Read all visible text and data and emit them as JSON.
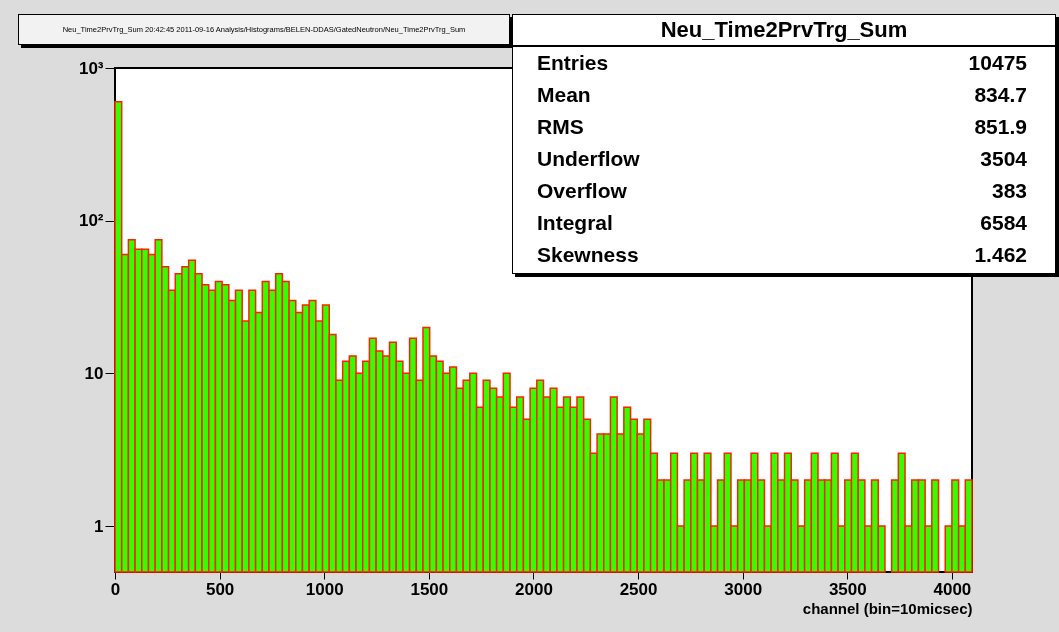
{
  "chart_data": {
    "type": "histogram",
    "title": "Neu_Time2PrvTrg_Sum  20:42:45  2011-09-16  Analysis/Histograms/BELEN-DDAS/GatedNeutron/Neu_Time2PrvTrg_Sum",
    "xlabel": "channel (bin=10micsec)",
    "color": "#33ff00",
    "log": true,
    "grid": false,
    "annotations": [
      "Neu_Time2PrvTrg_Sum",
      "Entries 10475",
      "Mean 834.7",
      "RMS 851.9",
      "Underflow 3504",
      "Overflow 383",
      "Integral 6584",
      "Skewness 1.462"
    ],
    "bins": [
      0,
      32,
      64,
      96,
      128,
      160,
      192,
      224,
      256,
      288,
      320,
      352,
      384,
      416,
      448,
      480,
      512,
      544,
      576,
      608,
      640,
      672,
      704,
      736,
      768,
      800,
      832,
      864,
      896,
      928,
      960,
      992,
      1024,
      1056,
      1088,
      1120,
      1152,
      1184,
      1216,
      1248,
      1280,
      1312,
      1344,
      1376,
      1408,
      1440,
      1472,
      1504,
      1536,
      1568,
      1600,
      1632,
      1664,
      1696,
      1728,
      1760,
      1792,
      1824,
      1856,
      1888,
      1920,
      1952,
      1984,
      2016,
      2048,
      2080,
      2112,
      2144,
      2176,
      2208,
      2240,
      2272,
      2304,
      2336,
      2368,
      2400,
      2432,
      2464,
      2496,
      2528,
      2560,
      2592,
      2624,
      2656,
      2688,
      2720,
      2752,
      2784,
      2816,
      2848,
      2880,
      2912,
      2944,
      2976,
      3008,
      3040,
      3072,
      3104,
      3136,
      3168,
      3200,
      3232,
      3264,
      3296,
      3328,
      3360,
      3392,
      3424,
      3456,
      3488,
      3520,
      3552,
      3584,
      3616,
      3648,
      3680,
      3712,
      3744,
      3776,
      3808,
      3840,
      3872,
      3904,
      3936,
      3968,
      4000,
      4032,
      4064,
      4096
    ],
    "values": [
      600,
      60,
      75,
      65,
      65,
      60,
      75,
      50,
      35,
      45,
      50,
      55,
      45,
      38,
      35,
      40,
      38,
      30,
      35,
      22,
      35,
      25,
      40,
      35,
      45,
      40,
      30,
      25,
      28,
      30,
      22,
      28,
      18,
      9,
      12,
      13,
      10,
      12,
      17,
      14,
      13,
      16,
      12,
      10,
      17,
      9,
      20,
      13,
      12,
      10,
      11,
      8,
      9,
      10,
      6,
      9,
      8,
      7,
      10,
      6,
      7,
      5,
      8,
      9,
      7,
      8,
      6,
      7,
      6,
      7,
      5,
      3,
      4,
      4,
      7,
      4,
      6,
      5,
      4,
      5,
      3,
      2,
      2,
      3,
      1,
      2,
      3,
      2,
      3,
      1,
      2,
      3,
      1,
      2,
      2,
      3,
      2,
      1,
      3,
      2,
      3,
      2,
      1,
      2,
      3,
      2,
      2,
      3,
      1,
      2,
      3,
      2,
      1,
      2,
      1,
      null,
      2,
      3,
      1,
      2,
      2,
      1,
      2,
      null,
      1,
      2,
      1,
      2
    ],
    "xlim": [
      0,
      4096
    ],
    "xticks": [
      0,
      500,
      1000,
      1500,
      2000,
      2500,
      3000,
      3500,
      4000
    ],
    "ylim": [
      0.5,
      1000
    ],
    "yticks": [
      {
        "value": 1,
        "label": "1"
      },
      {
        "value": 10,
        "label": "10"
      },
      {
        "value": 100,
        "label": "10²"
      },
      {
        "value": 1000,
        "label": "10³"
      }
    ]
  }
}
